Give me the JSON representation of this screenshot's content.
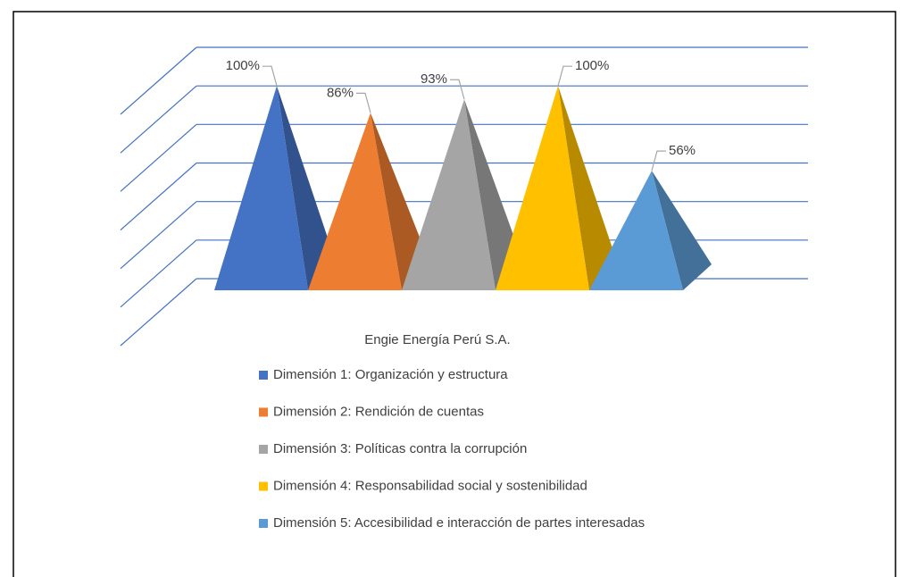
{
  "chart_data": {
    "type": "pyramid3d",
    "categories": [
      "Engie Energía Perú S.A."
    ],
    "series": [
      {
        "name": "Dimensión 1: Organización y estructura",
        "color": "#4472c4",
        "values": [
          100
        ],
        "value_labels": [
          "100%"
        ]
      },
      {
        "name": "Dimensión 2: Rendición de cuentas",
        "color": "#ed7d31",
        "values": [
          86
        ],
        "value_labels": [
          "86%"
        ]
      },
      {
        "name": "Dimensión 3: Políticas contra la corrupción",
        "color": "#a5a5a5",
        "values": [
          93
        ],
        "value_labels": [
          "93%"
        ]
      },
      {
        "name": "Dimensión 4: Responsabilidad social y sostenibilidad",
        "color": "#ffc000",
        "values": [
          100
        ],
        "value_labels": [
          "100%"
        ]
      },
      {
        "name": "Dimensión 5: Accesibilidad e interacción de partes interesadas",
        "color": "#5b9bd5",
        "values": [
          56
        ],
        "value_labels": [
          "56%"
        ]
      }
    ],
    "ylim": [
      0,
      120
    ],
    "yticks": [
      0,
      20,
      40,
      60,
      80,
      100,
      120
    ],
    "grid": true,
    "legend": "bottom"
  }
}
